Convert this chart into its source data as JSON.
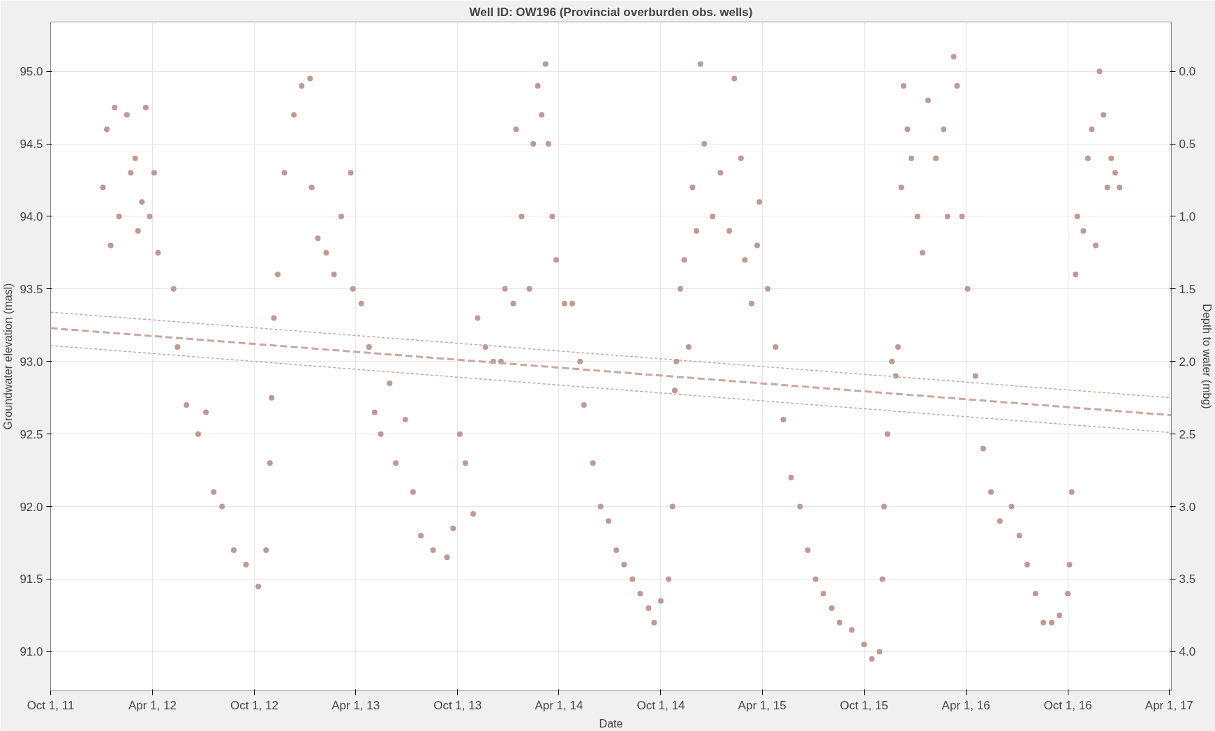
{
  "chart_data": {
    "type": "scatter",
    "title": "Well ID: OW196 (Provincial overburden obs. wells)",
    "xlabel": "Date",
    "ylabel": "Groundwater elevation (masl)",
    "y2label": "Depth to water (mbg)",
    "xlim": [
      "2011-10-01",
      "2017-04-05"
    ],
    "xticks": [
      {
        "value": "2011-10-01",
        "label": "Oct 1, 11"
      },
      {
        "value": "2012-04-01",
        "label": "Apr 1, 12"
      },
      {
        "value": "2012-10-01",
        "label": "Oct 1, 12"
      },
      {
        "value": "2013-04-01",
        "label": "Apr 1, 13"
      },
      {
        "value": "2013-10-01",
        "label": "Oct 1, 13"
      },
      {
        "value": "2014-04-01",
        "label": "Apr 1, 14"
      },
      {
        "value": "2014-10-01",
        "label": "Oct 1, 14"
      },
      {
        "value": "2015-04-01",
        "label": "Apr 1, 15"
      },
      {
        "value": "2015-10-01",
        "label": "Oct 1, 15"
      },
      {
        "value": "2016-04-01",
        "label": "Apr 1, 16"
      },
      {
        "value": "2016-10-01",
        "label": "Oct 1, 16"
      },
      {
        "value": "2017-04-01",
        "label": "Apr 1, 17"
      }
    ],
    "ylim": [
      90.73,
      95.34
    ],
    "yticks": [
      {
        "value": 91,
        "label": "91.0"
      },
      {
        "value": 91.5,
        "label": "91.5"
      },
      {
        "value": 92,
        "label": "92.0"
      },
      {
        "value": 92.5,
        "label": "92.5"
      },
      {
        "value": 93,
        "label": "93.0"
      },
      {
        "value": 93.5,
        "label": "93.5"
      },
      {
        "value": 94,
        "label": "94.0"
      },
      {
        "value": 94.5,
        "label": "94.5"
      },
      {
        "value": 95,
        "label": "95.0"
      }
    ],
    "y2lim": [
      4.27,
      -0.34
    ],
    "y2ticks": [
      {
        "value": 0,
        "label": "0.0"
      },
      {
        "value": 0.5,
        "label": "0.5"
      },
      {
        "value": 1,
        "label": "1.0"
      },
      {
        "value": 1.5,
        "label": "1.5"
      },
      {
        "value": 2,
        "label": "2.0"
      },
      {
        "value": 2.5,
        "label": "2.5"
      },
      {
        "value": 3,
        "label": "3.0"
      },
      {
        "value": 3.5,
        "label": "3.5"
      },
      {
        "value": 4,
        "label": "4.0"
      }
    ],
    "grid": true,
    "series": [
      {
        "color": "#bf9a92",
        "marker": "circle",
        "x": [
          "2012-01-03",
          "2012-01-10",
          "2012-01-17",
          "2012-01-24",
          "2012-02-01",
          "2012-02-15",
          "2012-02-22",
          "2012-03-01",
          "2012-03-06",
          "2012-03-13",
          "2012-03-20",
          "2012-03-27",
          "2012-04-04",
          "2012-04-11",
          "2012-05-09",
          "2012-05-16",
          "2012-06-01",
          "2012-06-22",
          "2012-07-06",
          "2012-07-20",
          "2012-08-04",
          "2012-08-25",
          "2012-09-16",
          "2012-10-08",
          "2012-10-22",
          "2012-10-29",
          "2012-11-01",
          "2012-11-05",
          "2012-11-12",
          "2012-11-24",
          "2012-12-11",
          "2012-12-25",
          "2013-01-09",
          "2013-01-12",
          "2013-01-23",
          "2013-02-07",
          "2013-02-21",
          "2013-03-06",
          "2013-03-23",
          "2013-03-27",
          "2013-04-11",
          "2013-04-25",
          "2013-05-05",
          "2013-05-16",
          "2013-06-01",
          "2013-06-12",
          "2013-06-29",
          "2013-07-13",
          "2013-07-27",
          "2013-08-18",
          "2013-09-12",
          "2013-09-23",
          "2013-10-05",
          "2013-10-15",
          "2013-10-29",
          "2013-11-06",
          "2013-11-20",
          "2013-12-04",
          "2013-12-18",
          "2013-12-25",
          "2014-01-09",
          "2014-01-14",
          "2014-01-24",
          "2014-02-07",
          "2014-02-14",
          "2014-02-22",
          "2014-03-01",
          "2014-03-08",
          "2014-03-13",
          "2014-03-20",
          "2014-03-27",
          "2014-04-11",
          "2014-04-25",
          "2014-05-09",
          "2014-05-16",
          "2014-06-01",
          "2014-06-15",
          "2014-06-29",
          "2014-07-13",
          "2014-07-27",
          "2014-08-11",
          "2014-08-25",
          "2014-09-09",
          "2014-09-19",
          "2014-10-01",
          "2014-10-15",
          "2014-10-22",
          "2014-10-26",
          "2014-10-29",
          "2014-11-05",
          "2014-11-12",
          "2014-11-20",
          "2014-11-27",
          "2014-12-04",
          "2014-12-11",
          "2014-12-18",
          "2015-01-02",
          "2015-01-16",
          "2015-02-01",
          "2015-02-10",
          "2015-02-22",
          "2015-03-01",
          "2015-03-13",
          "2015-03-23",
          "2015-03-27",
          "2015-04-11",
          "2015-04-25",
          "2015-05-09",
          "2015-05-23",
          "2015-06-08",
          "2015-06-22",
          "2015-07-06",
          "2015-07-20",
          "2015-08-04",
          "2015-08-18",
          "2015-09-09",
          "2015-10-01",
          "2015-10-15",
          "2015-10-29",
          "2015-11-03",
          "2015-11-06",
          "2015-11-12",
          "2015-11-20",
          "2015-11-27",
          "2015-12-01",
          "2015-12-07",
          "2015-12-11",
          "2015-12-18",
          "2015-12-25",
          "2016-01-05",
          "2016-01-14",
          "2016-01-24",
          "2016-02-07",
          "2016-02-21",
          "2016-02-28",
          "2016-03-10",
          "2016-03-16",
          "2016-03-25",
          "2016-04-04",
          "2016-04-18",
          "2016-05-02",
          "2016-05-16",
          "2016-06-01",
          "2016-06-22",
          "2016-07-06",
          "2016-07-20",
          "2016-08-04",
          "2016-08-18",
          "2016-09-02",
          "2016-09-16",
          "2016-10-01",
          "2016-10-04",
          "2016-10-08",
          "2016-10-15",
          "2016-10-18",
          "2016-10-29",
          "2016-11-06",
          "2016-11-13",
          "2016-11-20",
          "2016-11-27",
          "2016-12-04",
          "2016-12-11",
          "2016-12-18",
          "2016-12-25",
          "2017-01-02"
        ],
        "values": [
          94.2,
          94.6,
          93.8,
          94.75,
          94.0,
          94.7,
          94.3,
          94.4,
          93.9,
          94.1,
          94.75,
          94.0,
          94.3,
          93.75,
          93.5,
          93.1,
          92.7,
          92.5,
          92.65,
          92.1,
          92.0,
          91.7,
          91.6,
          91.45,
          91.7,
          92.3,
          92.75,
          93.3,
          93.6,
          94.3,
          94.7,
          94.9,
          94.95,
          94.2,
          93.85,
          93.75,
          93.6,
          94.0,
          94.3,
          93.5,
          93.4,
          93.1,
          92.65,
          92.5,
          92.85,
          92.3,
          92.6,
          92.1,
          91.8,
          91.7,
          91.65,
          91.85,
          92.5,
          92.3,
          91.95,
          93.3,
          93.1,
          93.0,
          93.0,
          93.5,
          93.4,
          94.6,
          94.0,
          93.5,
          94.5,
          94.9,
          94.7,
          95.05,
          94.5,
          94.0,
          93.7,
          93.4,
          93.4,
          93.0,
          92.7,
          92.3,
          92.0,
          91.9,
          91.7,
          91.6,
          91.5,
          91.4,
          91.3,
          91.2,
          91.35,
          91.5,
          92.0,
          92.8,
          93.0,
          93.5,
          93.7,
          93.1,
          94.2,
          93.9,
          95.05,
          94.5,
          94.0,
          94.3,
          93.9,
          94.95,
          94.4,
          93.7,
          93.4,
          93.8,
          94.1,
          93.5,
          93.1,
          92.6,
          92.2,
          92.0,
          91.7,
          91.5,
          91.4,
          91.3,
          91.2,
          91.15,
          91.05,
          90.95,
          91.0,
          91.5,
          92.0,
          92.5,
          93.0,
          92.9,
          93.1,
          94.2,
          94.9,
          94.6,
          94.4,
          94.0,
          93.75,
          94.8,
          94.4,
          94.6,
          94.0,
          95.1,
          94.9,
          94.0,
          93.5,
          92.9,
          92.4,
          92.1,
          91.9,
          92.0,
          91.8,
          91.6,
          91.4,
          91.2,
          91.2,
          91.25,
          91.4,
          91.6,
          92.1,
          93.6,
          94.0,
          93.9,
          94.4,
          94.6,
          93.8,
          95.0,
          94.7,
          94.2,
          94.4,
          94.3,
          94.2
        ]
      },
      {
        "type": "line",
        "color": "#c9a8a0",
        "marker": "none",
        "line_style": "dashed",
        "x": [
          "2011-10-01",
          "2017-04-05"
        ],
        "values": [
          93.23,
          92.63
        ]
      },
      {
        "type": "line",
        "color": "#c9a8a0",
        "marker": "none",
        "line_style": "dotted",
        "x": [
          "2011-10-01",
          "2017-04-05"
        ],
        "values": [
          93.34,
          92.75
        ]
      },
      {
        "type": "line",
        "color": "#c9a8a0",
        "marker": "none",
        "line_style": "dotted",
        "x": [
          "2011-10-01",
          "2017-04-05"
        ],
        "values": [
          93.11,
          92.51
        ]
      }
    ]
  }
}
